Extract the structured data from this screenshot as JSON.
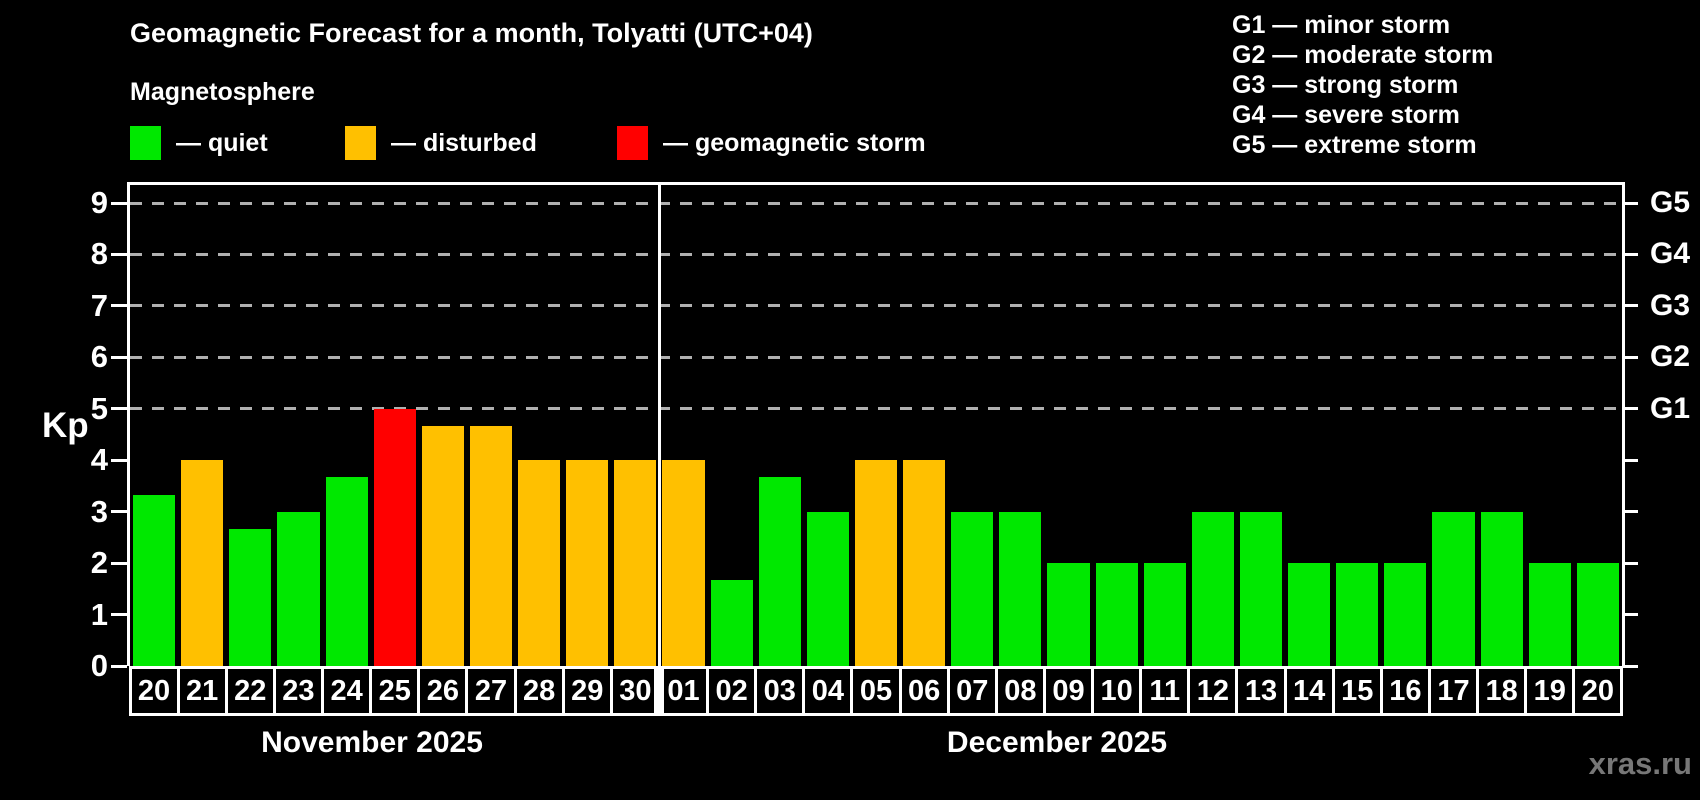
{
  "title": "Geomagnetic Forecast for a month, Tolyatti (UTC+04)",
  "subtitle": "Magnetosphere",
  "legend": {
    "items": [
      {
        "label": "— quiet",
        "status": "quiet"
      },
      {
        "label": "— disturbed",
        "status": "disturbed"
      },
      {
        "label": "— geomagnetic storm",
        "status": "storm"
      }
    ]
  },
  "g_scale": [
    "G1 — minor storm",
    "G2 — moderate storm",
    "G3 — strong storm",
    "G4 — severe storm",
    "G5 — extreme storm"
  ],
  "watermark": "xras.ru",
  "colors": {
    "quiet": "#00e800",
    "disturbed": "#ffc000",
    "storm": "#ff0000",
    "background": "#000000",
    "text": "#ffffff",
    "grid": "#b0b0b0",
    "watermark": "#777777"
  },
  "chart_data": {
    "type": "bar",
    "title": "Geomagnetic Forecast for a month, Tolyatti (UTC+04)",
    "ylabel": "Kp",
    "ylim": [
      0,
      9.35
    ],
    "yticks": [
      0,
      1,
      2,
      3,
      4,
      5,
      6,
      7,
      8,
      9
    ],
    "gridlines_at": [
      5,
      6,
      7,
      8,
      9
    ],
    "grid": "horizontal dashed lines at Kp 5-9 only",
    "legend_position": "top-left",
    "right_axis": {
      "labels": [
        "G1",
        "G2",
        "G3",
        "G4",
        "G5"
      ],
      "at": [
        5,
        6,
        7,
        8,
        9
      ]
    },
    "months": [
      {
        "label": "November 2025",
        "days": [
          "20",
          "21",
          "22",
          "23",
          "24",
          "25",
          "26",
          "27",
          "28",
          "29",
          "30"
        ],
        "values": [
          3.33,
          4,
          2.67,
          3,
          3.67,
          5,
          4.67,
          4.67,
          4,
          4,
          4
        ],
        "status": [
          "quiet",
          "disturbed",
          "quiet",
          "quiet",
          "quiet",
          "storm",
          "disturbed",
          "disturbed",
          "disturbed",
          "disturbed",
          "disturbed"
        ]
      },
      {
        "label": "December 2025",
        "days": [
          "01",
          "02",
          "03",
          "04",
          "05",
          "06",
          "07",
          "08",
          "09",
          "10",
          "11",
          "12",
          "13",
          "14",
          "15",
          "16",
          "17",
          "18",
          "19",
          "20"
        ],
        "values": [
          4,
          1.67,
          3.67,
          3,
          4,
          4,
          3,
          3,
          2,
          2,
          2,
          3,
          3,
          2,
          2,
          2,
          3,
          3,
          2,
          2
        ],
        "status": [
          "disturbed",
          "quiet",
          "quiet",
          "quiet",
          "disturbed",
          "disturbed",
          "quiet",
          "quiet",
          "quiet",
          "quiet",
          "quiet",
          "quiet",
          "quiet",
          "quiet",
          "quiet",
          "quiet",
          "quiet",
          "quiet",
          "quiet",
          "quiet"
        ]
      }
    ]
  }
}
